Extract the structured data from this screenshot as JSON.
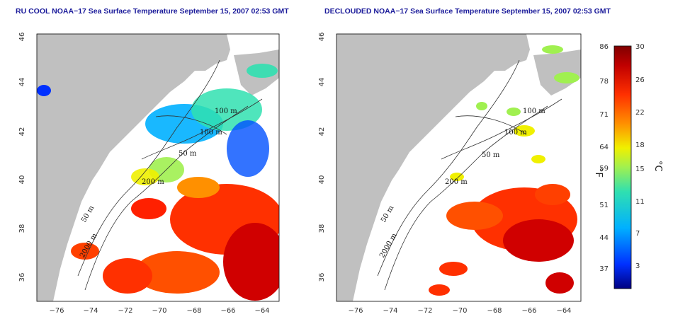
{
  "left_panel": {
    "title": "RU COOL NOAA−17 Sea Surface Temperature September 15, 2007 02:53 GMT"
  },
  "right_panel": {
    "title": "DECLOUDED NOAA−17 Sea Surface Temperature September 15, 2007 02:53 GMT"
  },
  "axes": {
    "x_ticks": [
      "−76",
      "−74",
      "−72",
      "−70",
      "−68",
      "−66",
      "−64"
    ],
    "y_ticks": [
      "46",
      "44",
      "42",
      "40",
      "38",
      "36"
    ]
  },
  "isobaths": {
    "m100_a": "100 m",
    "m100_b": "100 m",
    "m50": "50 m",
    "m200": "200 m",
    "m50_south": "50 m",
    "m2000": "2000 m"
  },
  "colorbar": {
    "fahrenheit_ticks": [
      "86",
      "78",
      "71",
      "64",
      "59",
      "51",
      "44",
      "37"
    ],
    "celsius_ticks": [
      "30",
      "26",
      "22",
      "18",
      "15",
      "11",
      "7",
      "3"
    ],
    "fahrenheit_unit": "°F",
    "celsius_unit": "°C",
    "range_celsius": [
      0,
      30
    ],
    "colors": [
      "#000080",
      "#0030ff",
      "#00b0ff",
      "#30e0b0",
      "#a0f050",
      "#f0f000",
      "#ff9000",
      "#ff3000",
      "#c00000",
      "#800000"
    ]
  },
  "colors": {
    "land": "#c0c0c0",
    "ocean_cloud": "#ffffff",
    "title": "#1a1a9a",
    "warm": "#ff3000",
    "cool": "#00b0ff"
  }
}
